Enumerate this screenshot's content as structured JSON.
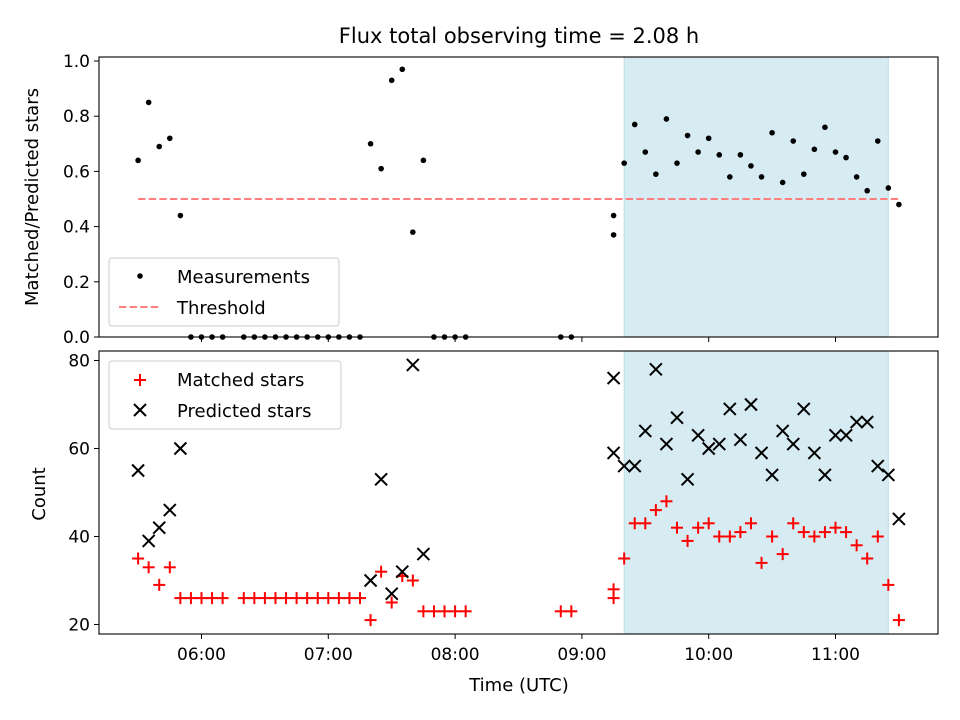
{
  "title": "Flux total observing time = 2.08 h",
  "colors": {
    "measurement": "#000000",
    "threshold": "#ff7f7f",
    "matched": "#ff0000",
    "predicted": "#000000",
    "shade": "#add8e6"
  },
  "chart_data": [
    {
      "type": "scatter",
      "ylabel": "Matched/Predicted stars",
      "ylim": [
        0,
        1.0
      ],
      "yticks": [
        "0.0",
        "0.2",
        "0.4",
        "0.6",
        "0.8",
        "1.0"
      ],
      "threshold": 0.5,
      "shaded_interval": [
        "09:20",
        "11:25"
      ],
      "legend": {
        "placement": "lower-left",
        "entries": [
          "Measurements",
          "Threshold"
        ]
      },
      "series": [
        {
          "name": "Measurements",
          "points": [
            [
              "05:30",
              0.64
            ],
            [
              "05:35",
              0.85
            ],
            [
              "05:40",
              0.69
            ],
            [
              "05:45",
              0.72
            ],
            [
              "05:50",
              0.44
            ],
            [
              "05:55",
              0
            ],
            [
              "06:00",
              0
            ],
            [
              "06:05",
              0
            ],
            [
              "06:10",
              0
            ],
            [
              "06:20",
              0
            ],
            [
              "06:25",
              0
            ],
            [
              "06:30",
              0
            ],
            [
              "06:35",
              0
            ],
            [
              "06:40",
              0
            ],
            [
              "06:45",
              0
            ],
            [
              "06:50",
              0
            ],
            [
              "06:55",
              0
            ],
            [
              "07:00",
              0
            ],
            [
              "07:05",
              0
            ],
            [
              "07:10",
              0
            ],
            [
              "07:15",
              0
            ],
            [
              "07:20",
              0.7
            ],
            [
              "07:25",
              0.61
            ],
            [
              "07:30",
              0.93
            ],
            [
              "07:35",
              0.97
            ],
            [
              "07:40",
              0.38
            ],
            [
              "07:45",
              0.64
            ],
            [
              "07:50",
              0
            ],
            [
              "07:55",
              0
            ],
            [
              "08:00",
              0
            ],
            [
              "08:05",
              0
            ],
            [
              "08:50",
              0
            ],
            [
              "08:55",
              0
            ],
            [
              "09:15",
              0.37
            ],
            [
              "09:15",
              0.44
            ],
            [
              "09:20",
              0.63
            ],
            [
              "09:25",
              0.77
            ],
            [
              "09:30",
              0.67
            ],
            [
              "09:35",
              0.59
            ],
            [
              "09:40",
              0.79
            ],
            [
              "09:45",
              0.63
            ],
            [
              "09:50",
              0.73
            ],
            [
              "09:55",
              0.67
            ],
            [
              "10:00",
              0.72
            ],
            [
              "10:05",
              0.66
            ],
            [
              "10:10",
              0.58
            ],
            [
              "10:15",
              0.66
            ],
            [
              "10:20",
              0.62
            ],
            [
              "10:25",
              0.58
            ],
            [
              "10:30",
              0.74
            ],
            [
              "10:35",
              0.56
            ],
            [
              "10:40",
              0.71
            ],
            [
              "10:45",
              0.59
            ],
            [
              "10:50",
              0.68
            ],
            [
              "10:55",
              0.76
            ],
            [
              "11:00",
              0.67
            ],
            [
              "11:05",
              0.65
            ],
            [
              "11:10",
              0.58
            ],
            [
              "11:15",
              0.53
            ],
            [
              "11:20",
              0.71
            ],
            [
              "11:25",
              0.54
            ],
            [
              "11:30",
              0.48
            ]
          ]
        }
      ]
    },
    {
      "type": "scatter",
      "xlabel": "Time (UTC)",
      "ylabel": "Count",
      "ylim": [
        18,
        82
      ],
      "yticks": [
        "20",
        "40",
        "60",
        "80"
      ],
      "xticks": [
        "06:00",
        "07:00",
        "08:00",
        "09:00",
        "10:00",
        "11:00"
      ],
      "shaded_interval": [
        "09:20",
        "11:25"
      ],
      "legend": {
        "placement": "upper-left",
        "entries": [
          "Matched stars",
          "Predicted stars"
        ]
      },
      "series": [
        {
          "name": "Matched stars",
          "points": [
            [
              "05:30",
              35
            ],
            [
              "05:35",
              33
            ],
            [
              "05:40",
              29
            ],
            [
              "05:45",
              33
            ],
            [
              "05:50",
              26
            ],
            [
              "05:55",
              26
            ],
            [
              "06:00",
              26
            ],
            [
              "06:05",
              26
            ],
            [
              "06:10",
              26
            ],
            [
              "06:20",
              26
            ],
            [
              "06:25",
              26
            ],
            [
              "06:30",
              26
            ],
            [
              "06:35",
              26
            ],
            [
              "06:40",
              26
            ],
            [
              "06:45",
              26
            ],
            [
              "06:50",
              26
            ],
            [
              "06:55",
              26
            ],
            [
              "07:00",
              26
            ],
            [
              "07:05",
              26
            ],
            [
              "07:10",
              26
            ],
            [
              "07:15",
              26
            ],
            [
              "07:20",
              21
            ],
            [
              "07:25",
              32
            ],
            [
              "07:30",
              25
            ],
            [
              "07:35",
              31
            ],
            [
              "07:40",
              30
            ],
            [
              "07:45",
              23
            ],
            [
              "07:50",
              23
            ],
            [
              "07:55",
              23
            ],
            [
              "08:00",
              23
            ],
            [
              "08:05",
              23
            ],
            [
              "08:50",
              23
            ],
            [
              "08:55",
              23
            ],
            [
              "09:15",
              28
            ],
            [
              "09:15",
              26
            ],
            [
              "09:20",
              35
            ],
            [
              "09:25",
              43
            ],
            [
              "09:30",
              43
            ],
            [
              "09:35",
              46
            ],
            [
              "09:40",
              48
            ],
            [
              "09:45",
              42
            ],
            [
              "09:50",
              39
            ],
            [
              "09:55",
              42
            ],
            [
              "10:00",
              43
            ],
            [
              "10:05",
              40
            ],
            [
              "10:10",
              40
            ],
            [
              "10:15",
              41
            ],
            [
              "10:20",
              43
            ],
            [
              "10:25",
              34
            ],
            [
              "10:30",
              40
            ],
            [
              "10:35",
              36
            ],
            [
              "10:40",
              43
            ],
            [
              "10:45",
              41
            ],
            [
              "10:50",
              40
            ],
            [
              "10:55",
              41
            ],
            [
              "11:00",
              42
            ],
            [
              "11:05",
              41
            ],
            [
              "11:10",
              38
            ],
            [
              "11:15",
              35
            ],
            [
              "11:20",
              40
            ],
            [
              "11:25",
              29
            ],
            [
              "11:30",
              21
            ]
          ]
        },
        {
          "name": "Predicted stars",
          "points": [
            [
              "05:30",
              55
            ],
            [
              "05:35",
              39
            ],
            [
              "05:40",
              42
            ],
            [
              "05:45",
              46
            ],
            [
              "05:50",
              60
            ],
            [
              "07:20",
              30
            ],
            [
              "07:25",
              53
            ],
            [
              "07:30",
              27
            ],
            [
              "07:35",
              32
            ],
            [
              "07:40",
              79
            ],
            [
              "07:45",
              36
            ],
            [
              "09:15",
              76
            ],
            [
              "09:15",
              59
            ],
            [
              "09:20",
              56
            ],
            [
              "09:25",
              56
            ],
            [
              "09:30",
              64
            ],
            [
              "09:35",
              78
            ],
            [
              "09:40",
              61
            ],
            [
              "09:45",
              67
            ],
            [
              "09:50",
              53
            ],
            [
              "09:55",
              63
            ],
            [
              "10:00",
              60
            ],
            [
              "10:05",
              61
            ],
            [
              "10:10",
              69
            ],
            [
              "10:15",
              62
            ],
            [
              "10:20",
              70
            ],
            [
              "10:25",
              59
            ],
            [
              "10:30",
              54
            ],
            [
              "10:35",
              64
            ],
            [
              "10:40",
              61
            ],
            [
              "10:45",
              69
            ],
            [
              "10:50",
              59
            ],
            [
              "10:55",
              54
            ],
            [
              "11:00",
              63
            ],
            [
              "11:05",
              63
            ],
            [
              "11:10",
              66
            ],
            [
              "11:15",
              66
            ],
            [
              "11:20",
              56
            ],
            [
              "11:25",
              54
            ],
            [
              "11:30",
              44
            ]
          ]
        }
      ]
    }
  ]
}
